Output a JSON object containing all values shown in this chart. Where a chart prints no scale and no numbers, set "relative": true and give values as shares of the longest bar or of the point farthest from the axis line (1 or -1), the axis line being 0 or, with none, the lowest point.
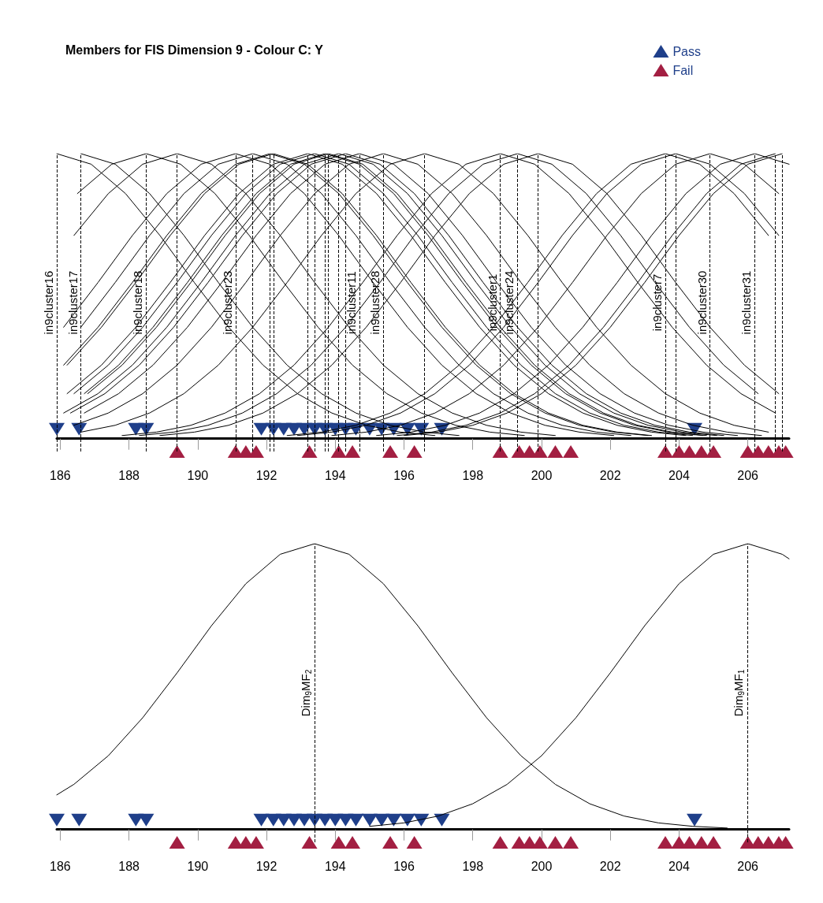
{
  "chart_data": [
    {
      "type": "line",
      "title": "Members for FIS Dimension 9 - Colour C: Y",
      "relative": true,
      "xlim": [
        185.9,
        207.2
      ],
      "xticks": [
        186,
        188,
        190,
        192,
        194,
        196,
        198,
        200,
        202,
        204,
        206
      ],
      "legend": "top right",
      "series": [
        {
          "color": "#000000",
          "marker": "none",
          "x": [
            185.9,
            186.9,
            187.9,
            188.9,
            189.9,
            190.9,
            191.9,
            192.9,
            193.9,
            194.9,
            195.9,
            196.9
          ],
          "values": [
            1,
            0.963,
            0.86,
            0.713,
            0.548,
            0.391,
            0.258,
            0.158,
            0.09,
            0.047,
            0.023,
            0.011
          ]
        },
        {
          "color": "#000000",
          "marker": "none",
          "x": [
            186.6,
            187.6,
            188.6,
            189.6,
            190.6,
            191.6,
            192.6,
            193.6,
            194.6,
            195.6,
            196.6,
            197.6
          ],
          "values": [
            1,
            0.963,
            0.86,
            0.713,
            0.548,
            0.391,
            0.258,
            0.158,
            0.09,
            0.047,
            0.023,
            0.011
          ]
        },
        {
          "color": "#000000",
          "marker": "none",
          "x": [
            186.5,
            187.5,
            188.5,
            189.5,
            190.5,
            191.5,
            192.5,
            193.5,
            194.5,
            195.5,
            196.5,
            197.5,
            198.5,
            199.5
          ],
          "values": [
            0.86,
            0.963,
            1,
            0.963,
            0.86,
            0.713,
            0.548,
            0.391,
            0.258,
            0.158,
            0.09,
            0.047,
            0.023,
            0.011
          ]
        },
        {
          "color": "#000000",
          "marker": "none",
          "x": [
            186.4,
            187.4,
            188.4,
            189.4,
            190.4,
            191.4,
            192.4,
            193.4,
            194.4,
            195.4,
            196.4,
            197.4,
            198.4,
            199.4,
            200.4
          ],
          "values": [
            0.713,
            0.86,
            0.963,
            1,
            0.963,
            0.86,
            0.713,
            0.548,
            0.391,
            0.258,
            0.158,
            0.09,
            0.047,
            0.023,
            0.011
          ]
        },
        {
          "color": "#000000",
          "marker": "none",
          "x": [
            186.1,
            187.1,
            188.1,
            189.1,
            190.1,
            191.1,
            192.1,
            193.1,
            194.1,
            195.1,
            196.1,
            197.1,
            198.1,
            199.1,
            200.1,
            201.1,
            202.1
          ],
          "values": [
            0.391,
            0.548,
            0.713,
            0.86,
            0.963,
            1,
            0.963,
            0.86,
            0.713,
            0.548,
            0.391,
            0.258,
            0.158,
            0.09,
            0.047,
            0.023,
            0.011
          ]
        },
        {
          "color": "#000000",
          "marker": "none",
          "x": [
            186.6,
            187.6,
            188.6,
            189.6,
            190.6,
            191.6,
            192.6,
            193.6,
            194.6,
            195.6,
            196.6,
            197.6,
            198.6,
            199.6,
            200.6,
            201.6,
            202.6
          ],
          "values": [
            0.391,
            0.548,
            0.713,
            0.86,
            0.963,
            1,
            0.963,
            0.86,
            0.713,
            0.548,
            0.391,
            0.258,
            0.158,
            0.09,
            0.047,
            0.023,
            0.011
          ]
        },
        {
          "color": "#000000",
          "marker": "none",
          "x": [
            186.1,
            187.1,
            188.1,
            189.1,
            190.1,
            191.1,
            192.1,
            193.1,
            194.1,
            195.1,
            196.1,
            197.1,
            198.1,
            199.1,
            200.1,
            201.1,
            202.1,
            203.1
          ],
          "values": [
            0.258,
            0.391,
            0.548,
            0.713,
            0.86,
            0.963,
            1,
            0.963,
            0.86,
            0.713,
            0.548,
            0.391,
            0.258,
            0.158,
            0.09,
            0.047,
            0.023,
            0.011
          ]
        },
        {
          "color": "#000000",
          "marker": "none",
          "x": [
            186.2,
            187.2,
            188.2,
            189.2,
            190.2,
            191.2,
            192.2,
            193.2,
            194.2,
            195.2,
            196.2,
            197.2,
            198.2,
            199.2,
            200.2,
            201.2,
            202.2,
            203.2
          ],
          "values": [
            0.258,
            0.391,
            0.548,
            0.713,
            0.86,
            0.963,
            1,
            0.963,
            0.86,
            0.713,
            0.548,
            0.391,
            0.258,
            0.158,
            0.09,
            0.047,
            0.023,
            0.011
          ]
        },
        {
          "color": "#000000",
          "marker": "none",
          "x": [
            186.2,
            187.2,
            188.2,
            189.2,
            190.2,
            191.2,
            192.2,
            193.2,
            194.2,
            195.2,
            196.2,
            197.2,
            198.2,
            199.2,
            200.2,
            201.2,
            202.2,
            203.2,
            204.2
          ],
          "values": [
            0.158,
            0.258,
            0.391,
            0.548,
            0.713,
            0.86,
            0.963,
            1,
            0.963,
            0.86,
            0.713,
            0.548,
            0.391,
            0.258,
            0.158,
            0.09,
            0.047,
            0.023,
            0.011
          ]
        },
        {
          "color": "#000000",
          "marker": "none",
          "x": [
            186.4,
            187.4,
            188.4,
            189.4,
            190.4,
            191.4,
            192.4,
            193.4,
            194.4,
            195.4,
            196.4,
            197.4,
            198.4,
            199.4,
            200.4,
            201.4,
            202.4,
            203.4,
            204.4
          ],
          "values": [
            0.158,
            0.258,
            0.391,
            0.548,
            0.713,
            0.86,
            0.963,
            1,
            0.963,
            0.86,
            0.713,
            0.548,
            0.391,
            0.258,
            0.158,
            0.09,
            0.047,
            0.023,
            0.011
          ]
        },
        {
          "color": "#000000",
          "marker": "none",
          "x": [
            186.7,
            187.7,
            188.7,
            189.7,
            190.7,
            191.7,
            192.7,
            193.7,
            194.7,
            195.7,
            196.7,
            197.7,
            198.7,
            199.7,
            200.7,
            201.7,
            202.7,
            203.7,
            204.7
          ],
          "values": [
            0.158,
            0.258,
            0.391,
            0.548,
            0.713,
            0.86,
            0.963,
            1,
            0.963,
            0.86,
            0.713,
            0.548,
            0.391,
            0.258,
            0.158,
            0.09,
            0.047,
            0.023,
            0.011
          ]
        },
        {
          "color": "#000000",
          "marker": "none",
          "x": [
            186.8,
            187.8,
            188.8,
            189.8,
            190.8,
            191.8,
            192.8,
            193.8,
            194.8,
            195.8,
            196.8,
            197.8,
            198.8,
            199.8,
            200.8,
            201.8,
            202.8,
            203.8,
            204.8
          ],
          "values": [
            0.158,
            0.258,
            0.391,
            0.548,
            0.713,
            0.86,
            0.963,
            1,
            0.963,
            0.86,
            0.713,
            0.548,
            0.391,
            0.258,
            0.158,
            0.09,
            0.047,
            0.023,
            0.011
          ]
        },
        {
          "color": "#000000",
          "marker": "none",
          "x": [
            186.1,
            187.1,
            188.1,
            189.1,
            190.1,
            191.1,
            192.1,
            193.1,
            194.1,
            195.1,
            196.1,
            197.1,
            198.1,
            199.1,
            200.1,
            201.1,
            202.1,
            203.1,
            204.1,
            205.1
          ],
          "values": [
            0.09,
            0.158,
            0.258,
            0.391,
            0.548,
            0.713,
            0.86,
            0.963,
            1,
            0.963,
            0.86,
            0.713,
            0.548,
            0.391,
            0.258,
            0.158,
            0.09,
            0.047,
            0.023,
            0.011
          ]
        },
        {
          "color": "#000000",
          "marker": "none",
          "x": [
            186.3,
            187.3,
            188.3,
            189.3,
            190.3,
            191.3,
            192.3,
            193.3,
            194.3,
            195.3,
            196.3,
            197.3,
            198.3,
            199.3,
            200.3,
            201.3,
            202.3,
            203.3,
            204.3,
            205.3
          ],
          "values": [
            0.09,
            0.158,
            0.258,
            0.391,
            0.548,
            0.713,
            0.86,
            0.963,
            1,
            0.963,
            0.86,
            0.713,
            0.548,
            0.391,
            0.258,
            0.158,
            0.09,
            0.047,
            0.023,
            0.011
          ]
        },
        {
          "color": "#000000",
          "marker": "none",
          "x": [
            186.7,
            187.7,
            188.7,
            189.7,
            190.7,
            191.7,
            192.7,
            193.7,
            194.7,
            195.7,
            196.7,
            197.7,
            198.7,
            199.7,
            200.7,
            201.7,
            202.7,
            203.7,
            204.7,
            205.7
          ],
          "values": [
            0.09,
            0.158,
            0.258,
            0.391,
            0.548,
            0.713,
            0.86,
            0.963,
            1,
            0.963,
            0.86,
            0.713,
            0.548,
            0.391,
            0.258,
            0.158,
            0.09,
            0.047,
            0.023,
            0.011
          ]
        },
        {
          "color": "#000000",
          "marker": "none",
          "x": [
            186.4,
            187.4,
            188.4,
            189.4,
            190.4,
            191.4,
            192.4,
            193.4,
            194.4,
            195.4,
            196.4,
            197.4,
            198.4,
            199.4,
            200.4,
            201.4,
            202.4,
            203.4,
            204.4,
            205.4,
            206.4
          ],
          "values": [
            0.047,
            0.09,
            0.158,
            0.258,
            0.391,
            0.548,
            0.713,
            0.86,
            0.963,
            1,
            0.963,
            0.86,
            0.713,
            0.548,
            0.391,
            0.258,
            0.158,
            0.09,
            0.047,
            0.023,
            0.011
          ]
        },
        {
          "color": "#000000",
          "marker": "none",
          "x": [
            186.6,
            187.6,
            188.6,
            189.6,
            190.6,
            191.6,
            192.6,
            193.6,
            194.6,
            195.6,
            196.6,
            197.6,
            198.6,
            199.6,
            200.6,
            201.6,
            202.6,
            203.6,
            204.6,
            205.6,
            206.6
          ],
          "values": [
            0.023,
            0.047,
            0.09,
            0.158,
            0.258,
            0.391,
            0.548,
            0.713,
            0.86,
            0.963,
            1,
            0.963,
            0.86,
            0.713,
            0.548,
            0.391,
            0.258,
            0.158,
            0.09,
            0.047,
            0.023
          ]
        },
        {
          "color": "#000000",
          "marker": "none",
          "x": [
            187.8,
            188.8,
            189.8,
            190.8,
            191.8,
            192.8,
            193.8,
            194.8,
            195.8,
            196.8,
            197.8,
            198.8,
            199.8,
            200.8,
            201.8,
            202.8,
            203.8,
            204.8,
            205.8,
            206.8
          ],
          "values": [
            0.011,
            0.023,
            0.047,
            0.09,
            0.158,
            0.258,
            0.391,
            0.548,
            0.713,
            0.86,
            0.963,
            1,
            0.963,
            0.86,
            0.713,
            0.548,
            0.391,
            0.258,
            0.158,
            0.09
          ]
        },
        {
          "color": "#000000",
          "marker": "none",
          "x": [
            188.3,
            189.3,
            190.3,
            191.3,
            192.3,
            193.3,
            194.3,
            195.3,
            196.3,
            197.3,
            198.3,
            199.3,
            200.3,
            201.3,
            202.3,
            203.3,
            204.3,
            205.3,
            206.3
          ],
          "values": [
            0.011,
            0.023,
            0.047,
            0.09,
            0.158,
            0.258,
            0.391,
            0.548,
            0.713,
            0.86,
            0.963,
            1,
            0.963,
            0.86,
            0.713,
            0.548,
            0.391,
            0.258,
            0.158
          ]
        },
        {
          "color": "#000000",
          "marker": "none",
          "x": [
            188.9,
            189.9,
            190.9,
            191.9,
            192.9,
            193.9,
            194.9,
            195.9,
            196.9,
            197.9,
            198.9,
            199.9,
            200.9,
            201.9,
            202.9,
            203.9,
            204.9,
            205.9,
            206.9
          ],
          "values": [
            0.011,
            0.023,
            0.047,
            0.09,
            0.158,
            0.258,
            0.391,
            0.548,
            0.713,
            0.86,
            0.963,
            1,
            0.963,
            0.86,
            0.713,
            0.548,
            0.391,
            0.258,
            0.158
          ]
        },
        {
          "color": "#000000",
          "marker": "none",
          "x": [
            192.6,
            193.6,
            194.6,
            195.6,
            196.6,
            197.6,
            198.6,
            199.6,
            200.6,
            201.6,
            202.6,
            203.6,
            204.6,
            205.6,
            206.6
          ],
          "values": [
            0.011,
            0.023,
            0.047,
            0.09,
            0.158,
            0.258,
            0.391,
            0.548,
            0.713,
            0.86,
            0.963,
            1,
            0.963,
            0.86,
            0.713
          ]
        },
        {
          "color": "#000000",
          "marker": "none",
          "x": [
            192.9,
            193.9,
            194.9,
            195.9,
            196.9,
            197.9,
            198.9,
            199.9,
            200.9,
            201.9,
            202.9,
            203.9,
            204.9,
            205.9,
            206.9
          ],
          "values": [
            0.011,
            0.023,
            0.047,
            0.09,
            0.158,
            0.258,
            0.391,
            0.548,
            0.713,
            0.86,
            0.963,
            1,
            0.963,
            0.86,
            0.713
          ]
        },
        {
          "color": "#000000",
          "marker": "none",
          "x": [
            193.9,
            194.9,
            195.9,
            196.9,
            197.9,
            198.9,
            199.9,
            200.9,
            201.9,
            202.9,
            203.9,
            204.9,
            205.9,
            206.9
          ],
          "values": [
            0.011,
            0.023,
            0.047,
            0.09,
            0.158,
            0.258,
            0.391,
            0.548,
            0.713,
            0.86,
            0.963,
            1,
            0.963,
            0.86
          ]
        },
        {
          "color": "#000000",
          "marker": "none",
          "x": [
            195.2,
            196.2,
            197.2,
            198.2,
            199.2,
            200.2,
            201.2,
            202.2,
            203.2,
            204.2,
            205.2,
            206.2,
            207.2
          ],
          "values": [
            0.011,
            0.023,
            0.047,
            0.09,
            0.158,
            0.258,
            0.391,
            0.548,
            0.713,
            0.86,
            0.963,
            1,
            0.963
          ]
        },
        {
          "color": "#000000",
          "marker": "none",
          "x": [
            195.8,
            196.8,
            197.8,
            198.8,
            199.8,
            200.8,
            201.8,
            202.8,
            203.8,
            204.8,
            205.8,
            206.8
          ],
          "values": [
            0.011,
            0.023,
            0.047,
            0.09,
            0.158,
            0.258,
            0.391,
            0.548,
            0.713,
            0.86,
            0.963,
            1
          ]
        },
        {
          "color": "#000000",
          "marker": "none",
          "x": [
            196.0,
            197.0,
            198.0,
            199.0,
            200.0,
            201.0,
            202.0,
            203.0,
            204.0,
            205.0,
            206.0,
            207.0
          ],
          "values": [
            0.011,
            0.023,
            0.047,
            0.09,
            0.158,
            0.258,
            0.391,
            0.548,
            0.713,
            0.86,
            0.963,
            1
          ]
        },
        {
          "type": "scatter",
          "name": "Pass",
          "color": "#1f3f8a",
          "marker": "triangle",
          "x": [
            185.9,
            186.55,
            188.2,
            188.5,
            191.85,
            192.2,
            192.5,
            192.8,
            193.1,
            193.4,
            193.7,
            194.0,
            194.3,
            194.6,
            195.0,
            195.35,
            195.7,
            196.1,
            196.5,
            197.1,
            204.45
          ],
          "values": [
            0.033,
            0.033,
            0.033,
            0.033,
            0.033,
            0.033,
            0.033,
            0.033,
            0.033,
            0.033,
            0.033,
            0.033,
            0.033,
            0.033,
            0.033,
            0.033,
            0.033,
            0.033,
            0.033,
            0.033,
            0.033
          ]
        },
        {
          "type": "scatter",
          "name": "Fail",
          "color": "#a31f42",
          "marker": "triangle",
          "x": [
            189.4,
            191.1,
            191.4,
            191.7,
            193.25,
            194.1,
            194.5,
            195.6,
            196.3,
            198.8,
            199.35,
            199.65,
            199.95,
            200.4,
            200.85,
            203.6,
            204.0,
            204.3,
            204.65,
            205.0,
            206.0,
            206.3,
            206.6,
            206.9,
            207.1
          ],
          "values": [
            -0.045,
            -0.045,
            -0.045,
            -0.045,
            -0.045,
            -0.045,
            -0.045,
            -0.045,
            -0.045,
            -0.045,
            -0.045,
            -0.045,
            -0.045,
            -0.045,
            -0.045,
            -0.045,
            -0.045,
            -0.045,
            -0.045,
            -0.045,
            -0.045,
            -0.045,
            -0.045,
            -0.045,
            -0.045
          ]
        }
      ],
      "ref_lines": [
        {
          "axis": "x",
          "value": 185.9,
          "label": "in9cluster16",
          "line_style": "dashed"
        },
        {
          "axis": "x",
          "value": 186.6,
          "label": "in9cluster17",
          "line_style": "dashed"
        },
        {
          "axis": "x",
          "value": 188.5,
          "label": "in9cluster18",
          "line_style": "dashed"
        },
        {
          "axis": "x",
          "value": 189.4,
          "line_style": "dashed"
        },
        {
          "axis": "x",
          "value": 191.1,
          "label": "in9cluster23",
          "line_style": "dashed"
        },
        {
          "axis": "x",
          "value": 191.6,
          "line_style": "dashed"
        },
        {
          "axis": "x",
          "value": 192.1,
          "line_style": "dashed"
        },
        {
          "axis": "x",
          "value": 192.2,
          "line_style": "dashed"
        },
        {
          "axis": "x",
          "value": 193.2,
          "line_style": "dashed"
        },
        {
          "axis": "x",
          "value": 193.4,
          "line_style": "dashed"
        },
        {
          "axis": "x",
          "value": 193.7,
          "line_style": "dashed"
        },
        {
          "axis": "x",
          "value": 193.8,
          "line_style": "dashed"
        },
        {
          "axis": "x",
          "value": 194.1,
          "line_style": "dashed"
        },
        {
          "axis": "x",
          "value": 194.3,
          "line_style": "dashed"
        },
        {
          "axis": "x",
          "value": 194.7,
          "label": "in9cluster11",
          "line_style": "dashed"
        },
        {
          "axis": "x",
          "value": 195.4,
          "label": "in9cluster28",
          "line_style": "dashed"
        },
        {
          "axis": "x",
          "value": 196.6,
          "line_style": "dashed"
        },
        {
          "axis": "x",
          "value": 198.8,
          "label": "in9cluster1",
          "line_style": "dashed"
        },
        {
          "axis": "x",
          "value": 199.3,
          "label": "in9cluster24",
          "line_style": "dashed"
        },
        {
          "axis": "x",
          "value": 199.9,
          "line_style": "dashed"
        },
        {
          "axis": "x",
          "value": 203.6,
          "label": "in9cluster7",
          "line_style": "dashed"
        },
        {
          "axis": "x",
          "value": 203.9,
          "line_style": "dashed"
        },
        {
          "axis": "x",
          "value": 204.9,
          "label": "in9cluster30",
          "line_style": "dashed"
        },
        {
          "axis": "x",
          "value": 206.2,
          "label": "in9cluster31",
          "line_style": "dashed"
        },
        {
          "axis": "x",
          "value": 206.8,
          "line_style": "dashed"
        },
        {
          "axis": "x",
          "value": 207.0,
          "line_style": "dashed"
        }
      ]
    },
    {
      "type": "line",
      "relative": true,
      "xlim": [
        185.9,
        207.2
      ],
      "xticks": [
        186,
        188,
        190,
        192,
        194,
        196,
        198,
        200,
        202,
        204,
        206
      ],
      "series": [
        {
          "color": "#000000",
          "marker": "none",
          "x": [
            185.9,
            186.4,
            187.4,
            188.4,
            189.4,
            190.4,
            191.4,
            192.4,
            193.4,
            194.4,
            195.4,
            196.4,
            197.4,
            198.4,
            199.4,
            200.4,
            201.4,
            202.4,
            203.4,
            204.4,
            205.4
          ],
          "values": [
            0.121,
            0.158,
            0.258,
            0.391,
            0.548,
            0.713,
            0.86,
            0.963,
            1,
            0.963,
            0.86,
            0.713,
            0.548,
            0.391,
            0.258,
            0.158,
            0.09,
            0.047,
            0.023,
            0.011,
            0.005
          ]
        },
        {
          "color": "#000000",
          "marker": "none",
          "x": [
            195.0,
            196.0,
            197.0,
            198.0,
            199.0,
            200.0,
            201.0,
            202.0,
            203.0,
            204.0,
            205.0,
            206.0,
            207.0,
            207.2
          ],
          "values": [
            0.011,
            0.023,
            0.047,
            0.09,
            0.158,
            0.258,
            0.391,
            0.548,
            0.713,
            0.86,
            0.963,
            1,
            0.963,
            0.947
          ]
        },
        {
          "type": "scatter",
          "color": "#1f3f8a",
          "marker": "triangle",
          "x": [
            185.9,
            186.55,
            188.2,
            188.5,
            191.85,
            192.2,
            192.5,
            192.8,
            193.1,
            193.4,
            193.7,
            194.0,
            194.3,
            194.6,
            195.0,
            195.35,
            195.7,
            196.1,
            196.5,
            197.1,
            204.45
          ],
          "values": [
            0.033,
            0.033,
            0.033,
            0.033,
            0.033,
            0.033,
            0.033,
            0.033,
            0.033,
            0.033,
            0.033,
            0.033,
            0.033,
            0.033,
            0.033,
            0.033,
            0.033,
            0.033,
            0.033,
            0.033,
            0.033
          ]
        },
        {
          "type": "scatter",
          "color": "#a31f42",
          "marker": "triangle",
          "x": [
            189.4,
            191.1,
            191.4,
            191.7,
            193.25,
            194.1,
            194.5,
            195.6,
            196.3,
            198.8,
            199.35,
            199.65,
            199.95,
            200.4,
            200.85,
            203.6,
            204.0,
            204.3,
            204.65,
            205.0,
            206.0,
            206.3,
            206.6,
            206.9,
            207.1
          ],
          "values": [
            -0.045,
            -0.045,
            -0.045,
            -0.045,
            -0.045,
            -0.045,
            -0.045,
            -0.045,
            -0.045,
            -0.045,
            -0.045,
            -0.045,
            -0.045,
            -0.045,
            -0.045,
            -0.045,
            -0.045,
            -0.045,
            -0.045,
            -0.045,
            -0.045,
            -0.045,
            -0.045,
            -0.045,
            -0.045
          ]
        }
      ],
      "ref_lines": [
        {
          "axis": "x",
          "value": 193.4,
          "label": "Dim$_{9}$MF$_{2}$",
          "line_style": "dashed"
        },
        {
          "axis": "x",
          "value": 206.0,
          "label": "Dim$_{9}$MF$_{1}$",
          "line_style": "dashed"
        }
      ]
    }
  ]
}
